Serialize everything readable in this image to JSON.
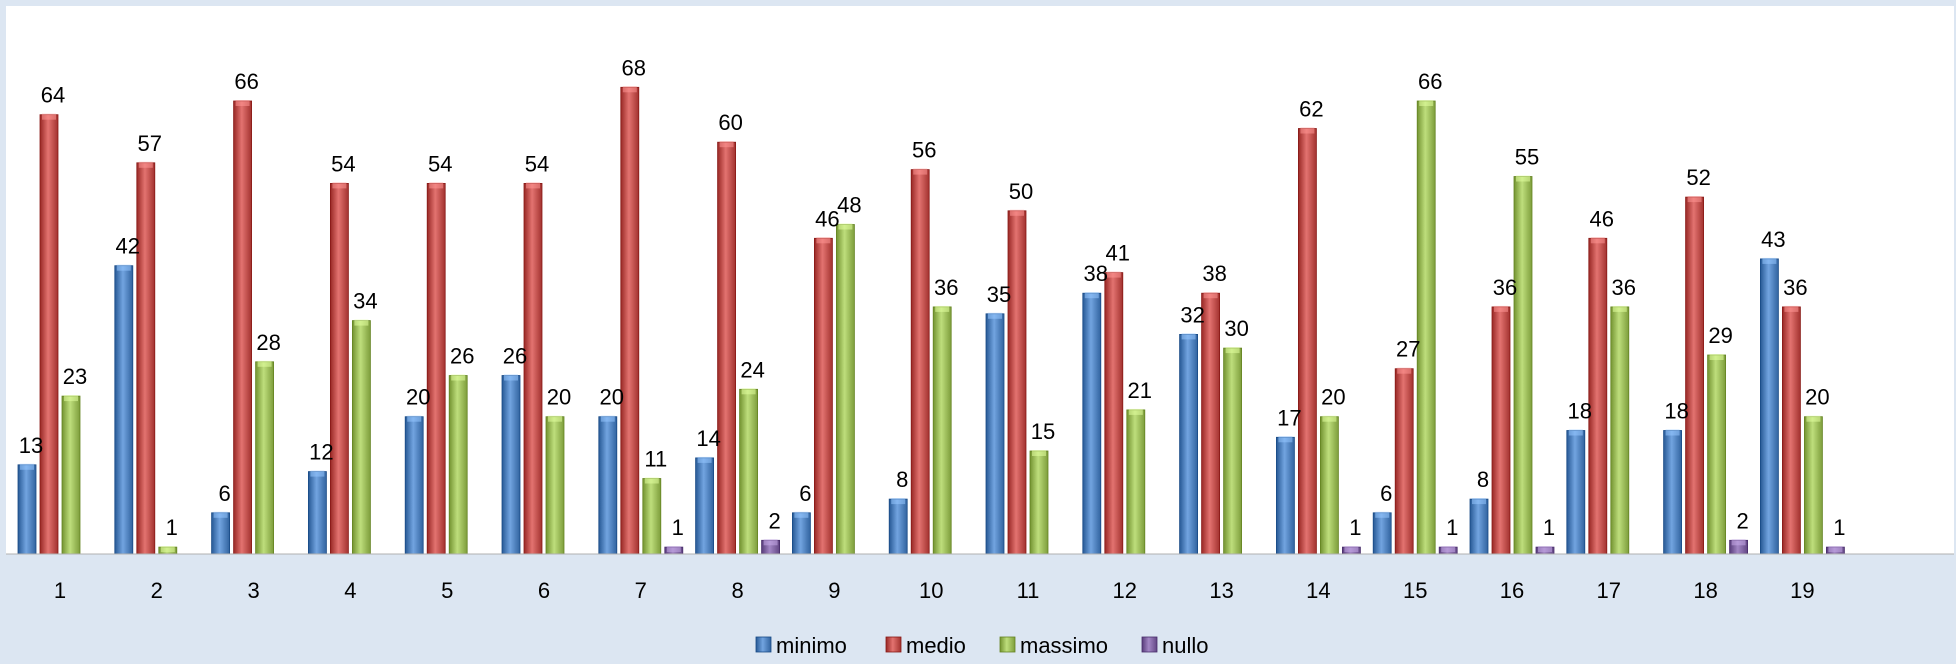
{
  "chart_data": {
    "type": "bar",
    "title": "",
    "xlabel": "",
    "ylabel": "",
    "ylim": [
      0,
      72
    ],
    "grid": false,
    "legend_position": "bottom",
    "categories": [
      "1",
      "2",
      "3",
      "4",
      "5",
      "6",
      "7",
      "8",
      "9",
      "10",
      "11",
      "12",
      "13",
      "14",
      "15",
      "16",
      "17",
      "18",
      "19"
    ],
    "series": [
      {
        "name": "minimo",
        "color": "#4f81bd",
        "values": [
          13,
          42,
          6,
          12,
          20,
          26,
          20,
          14,
          6,
          8,
          35,
          38,
          32,
          17,
          6,
          8,
          18,
          18,
          43
        ]
      },
      {
        "name": "medio",
        "color": "#c0504d",
        "values": [
          64,
          57,
          66,
          54,
          54,
          54,
          68,
          60,
          46,
          56,
          50,
          41,
          38,
          62,
          27,
          36,
          46,
          52,
          36
        ]
      },
      {
        "name": "massimo",
        "color": "#9bbb59",
        "values": [
          23,
          1,
          28,
          34,
          26,
          20,
          11,
          24,
          48,
          36,
          15,
          21,
          30,
          20,
          66,
          55,
          36,
          29,
          20
        ]
      },
      {
        "name": "nullo",
        "color": "#8064a2",
        "values": [
          null,
          null,
          null,
          null,
          null,
          null,
          1,
          2,
          null,
          null,
          null,
          null,
          null,
          1,
          1,
          1,
          null,
          2,
          1
        ]
      }
    ]
  }
}
